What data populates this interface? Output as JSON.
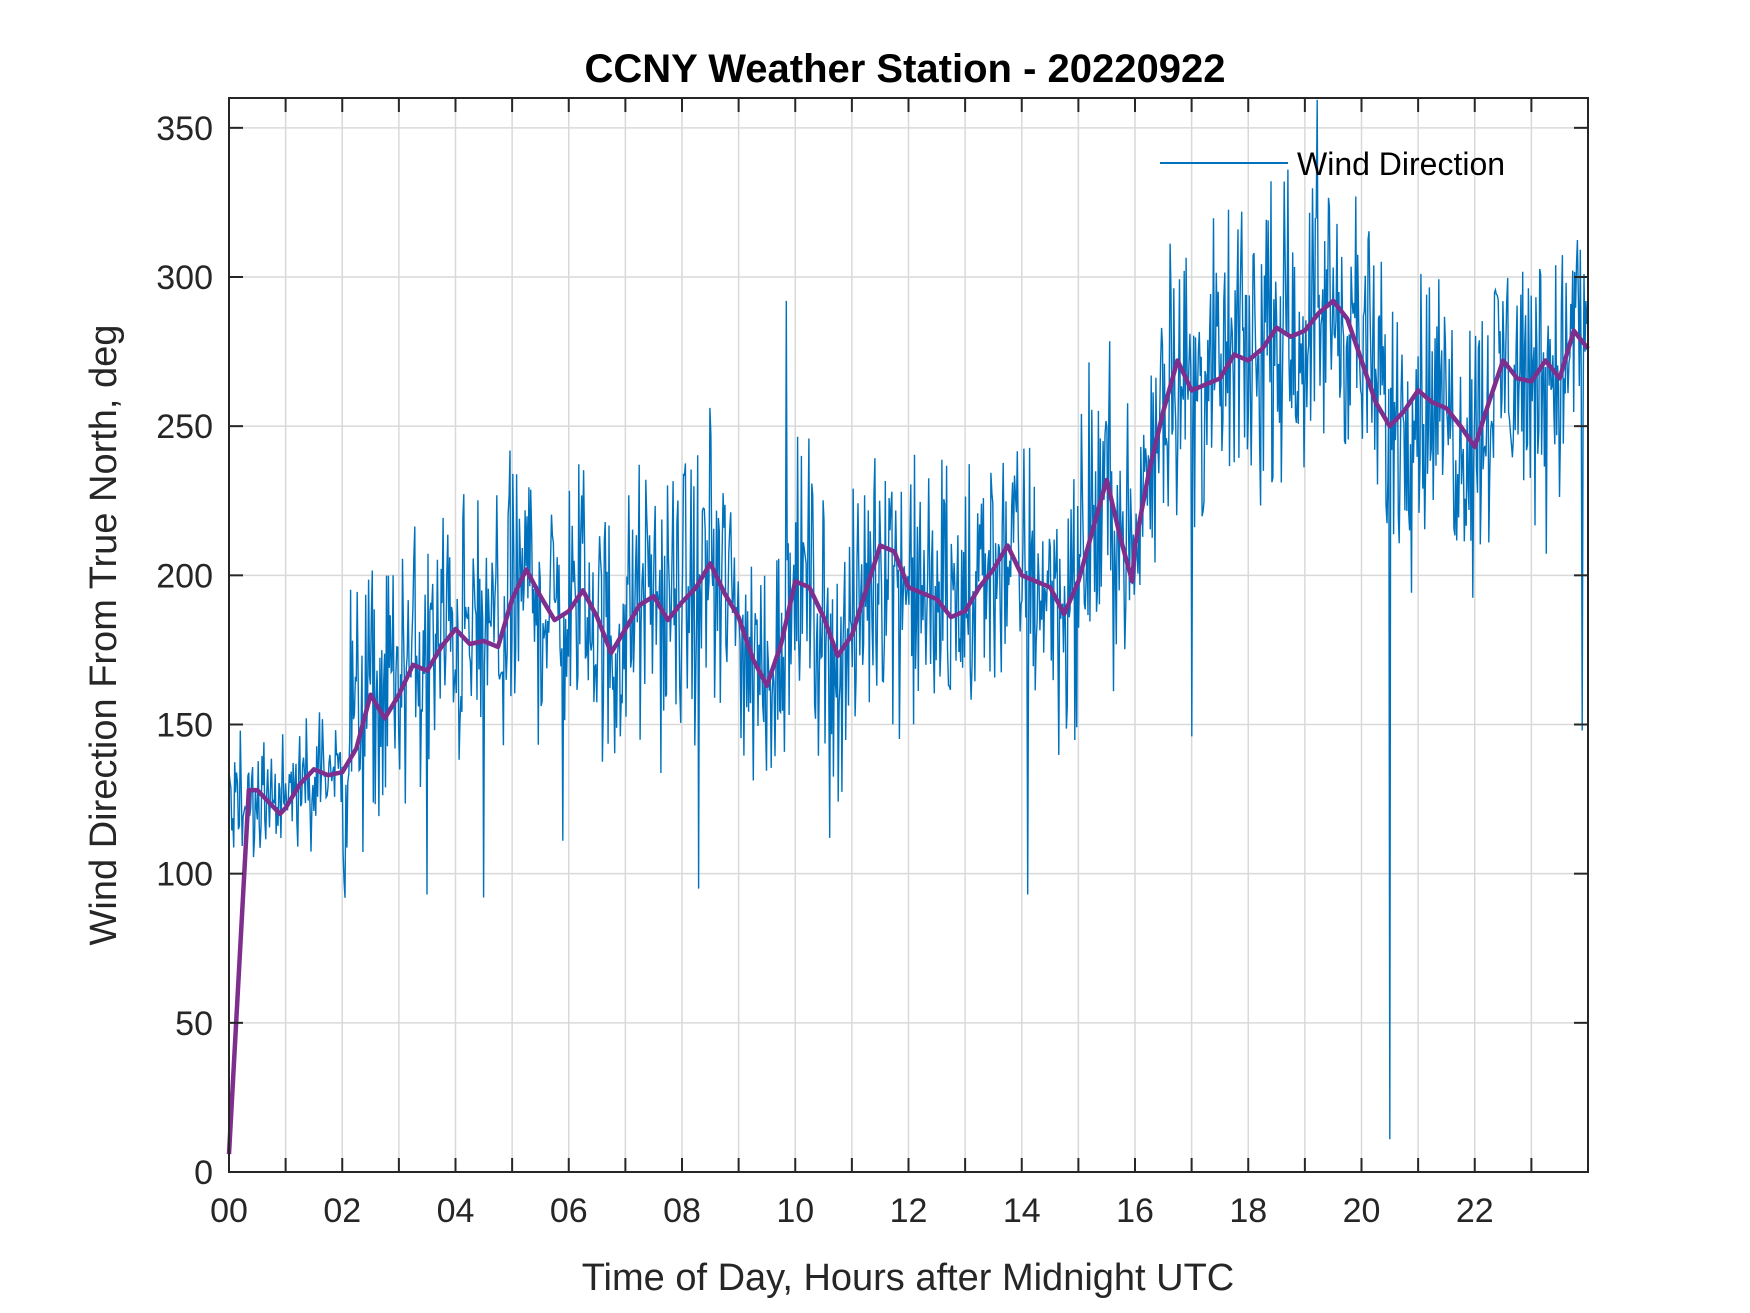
{
  "chart_data": {
    "type": "line",
    "title": "CCNY Weather Station - 20220922",
    "xlabel": "Time of Day, Hours after Midnight UTC",
    "ylabel": "Wind Direction From True North, deg",
    "xlim": [
      0,
      24
    ],
    "ylim": [
      0,
      360
    ],
    "x_tick_values": [
      0,
      2,
      4,
      6,
      8,
      10,
      12,
      14,
      16,
      18,
      20,
      22
    ],
    "x_tick_labels": [
      "00",
      "02",
      "04",
      "06",
      "08",
      "10",
      "12",
      "14",
      "16",
      "18",
      "20",
      "22"
    ],
    "x_minor_tick_values": [
      1,
      3,
      5,
      7,
      9,
      11,
      13,
      15,
      17,
      19,
      21,
      23
    ],
    "y_tick_values": [
      0,
      50,
      100,
      150,
      200,
      250,
      300,
      350
    ],
    "y_tick_labels": [
      "0",
      "50",
      "100",
      "150",
      "200",
      "250",
      "300",
      "350"
    ],
    "grid": true,
    "legend_position": "top-right",
    "series": [
      {
        "name": "Wind Direction",
        "color": "#0072bd",
        "noise_spread": 26,
        "x": [
          0,
          0.25,
          0.5,
          0.75,
          1.0,
          1.25,
          1.5,
          1.75,
          2.0,
          2.25,
          2.5,
          2.75,
          3.0,
          3.25,
          3.5,
          3.75,
          4.0,
          4.25,
          4.5,
          4.75,
          5.0,
          5.25,
          5.5,
          5.75,
          6.0,
          6.25,
          6.5,
          6.75,
          7.0,
          7.25,
          7.5,
          7.75,
          8.0,
          8.25,
          8.5,
          8.75,
          9.0,
          9.25,
          9.5,
          9.75,
          10.0,
          10.25,
          10.5,
          10.75,
          11.0,
          11.25,
          11.5,
          11.75,
          12.0,
          12.25,
          12.5,
          12.75,
          13.0,
          13.25,
          13.5,
          13.75,
          14.0,
          14.25,
          14.5,
          14.75,
          15.0,
          15.25,
          15.5,
          15.75,
          16.0,
          16.25,
          16.5,
          16.75,
          17.0,
          17.25,
          17.5,
          17.75,
          18.0,
          18.25,
          18.5,
          18.75,
          19.0,
          19.25,
          19.5,
          19.75,
          20.0,
          20.25,
          20.5,
          20.75,
          21.0,
          21.25,
          21.5,
          21.75,
          22.0,
          22.25,
          22.5,
          22.75,
          23.0,
          23.25,
          23.5,
          23.75,
          23.98
        ],
        "y": [
          125,
          126,
          127,
          122,
          124,
          130,
          134,
          132,
          136,
          155,
          155,
          162,
          168,
          170,
          172,
          178,
          182,
          178,
          178,
          180,
          190,
          200,
          192,
          185,
          188,
          194,
          184,
          175,
          182,
          190,
          193,
          186,
          192,
          196,
          202,
          195,
          185,
          170,
          165,
          180,
          198,
          195,
          185,
          172,
          180,
          192,
          208,
          205,
          194,
          192,
          192,
          188,
          190,
          196,
          203,
          210,
          201,
          198,
          197,
          188,
          198,
          215,
          230,
          210,
          205,
          242,
          262,
          272,
          262,
          264,
          268,
          274,
          272,
          276,
          282,
          280,
          282,
          288,
          290,
          286,
          278,
          262,
          252,
          255,
          260,
          258,
          255,
          248,
          245,
          258,
          272,
          268,
          266,
          272,
          268,
          280,
          278
        ],
        "spikes": [
          {
            "x": 20.5,
            "y": 11
          },
          {
            "x": 9.85,
            "y": 292
          },
          {
            "x": 18.7,
            "y": 336
          },
          {
            "x": 19.9,
            "y": 327
          },
          {
            "x": 4.5,
            "y": 92
          },
          {
            "x": 14.1,
            "y": 93
          },
          {
            "x": 3.5,
            "y": 93
          },
          {
            "x": 23.9,
            "y": 148
          },
          {
            "x": 17.0,
            "y": 146
          },
          {
            "x": 8.3,
            "y": 95
          },
          {
            "x": 5.9,
            "y": 111
          },
          {
            "x": 10.6,
            "y": 112
          }
        ]
      },
      {
        "name": "",
        "color": "#7e2f8e",
        "x": [
          0,
          0.35,
          0.5,
          0.75,
          0.9,
          1.0,
          1.25,
          1.5,
          1.75,
          2.0,
          2.25,
          2.5,
          2.75,
          3.0,
          3.25,
          3.5,
          3.75,
          4.0,
          4.25,
          4.5,
          4.75,
          5.0,
          5.25,
          5.5,
          5.75,
          6.0,
          6.25,
          6.5,
          6.75,
          7.0,
          7.25,
          7.5,
          7.75,
          8.0,
          8.25,
          8.5,
          8.75,
          9.0,
          9.25,
          9.5,
          9.75,
          10.0,
          10.25,
          10.5,
          10.75,
          11.0,
          11.25,
          11.5,
          11.75,
          12.0,
          12.25,
          12.5,
          12.75,
          13.0,
          13.25,
          13.5,
          13.75,
          14.0,
          14.25,
          14.5,
          14.75,
          15.0,
          15.25,
          15.5,
          15.75,
          15.95,
          16.0,
          16.25,
          16.5,
          16.75,
          17.0,
          17.25,
          17.5,
          17.75,
          18.0,
          18.25,
          18.5,
          18.75,
          19.0,
          19.25,
          19.5,
          19.75,
          20.0,
          20.25,
          20.5,
          20.75,
          21.0,
          21.25,
          21.5,
          21.75,
          22.0,
          22.25,
          22.5,
          22.75,
          23.0,
          23.25,
          23.5,
          23.75,
          24.0
        ],
        "y": [
          6,
          128,
          128,
          123,
          120,
          122,
          130,
          135,
          133,
          134,
          142,
          160,
          152,
          160,
          170,
          168,
          176,
          182,
          177,
          178,
          176,
          192,
          202,
          193,
          185,
          188,
          195,
          186,
          174,
          182,
          190,
          193,
          185,
          191,
          196,
          204,
          194,
          186,
          172,
          163,
          177,
          198,
          196,
          186,
          173,
          180,
          195,
          210,
          208,
          196,
          194,
          192,
          186,
          188,
          196,
          202,
          210,
          200,
          198,
          196,
          187,
          198,
          215,
          232,
          212,
          198,
          210,
          235,
          255,
          272,
          262,
          264,
          266,
          274,
          272,
          276,
          283,
          280,
          282,
          288,
          292,
          286,
          272,
          258,
          250,
          255,
          262,
          258,
          256,
          250,
          243,
          258,
          272,
          266,
          265,
          272,
          266,
          282,
          276
        ]
      }
    ]
  }
}
